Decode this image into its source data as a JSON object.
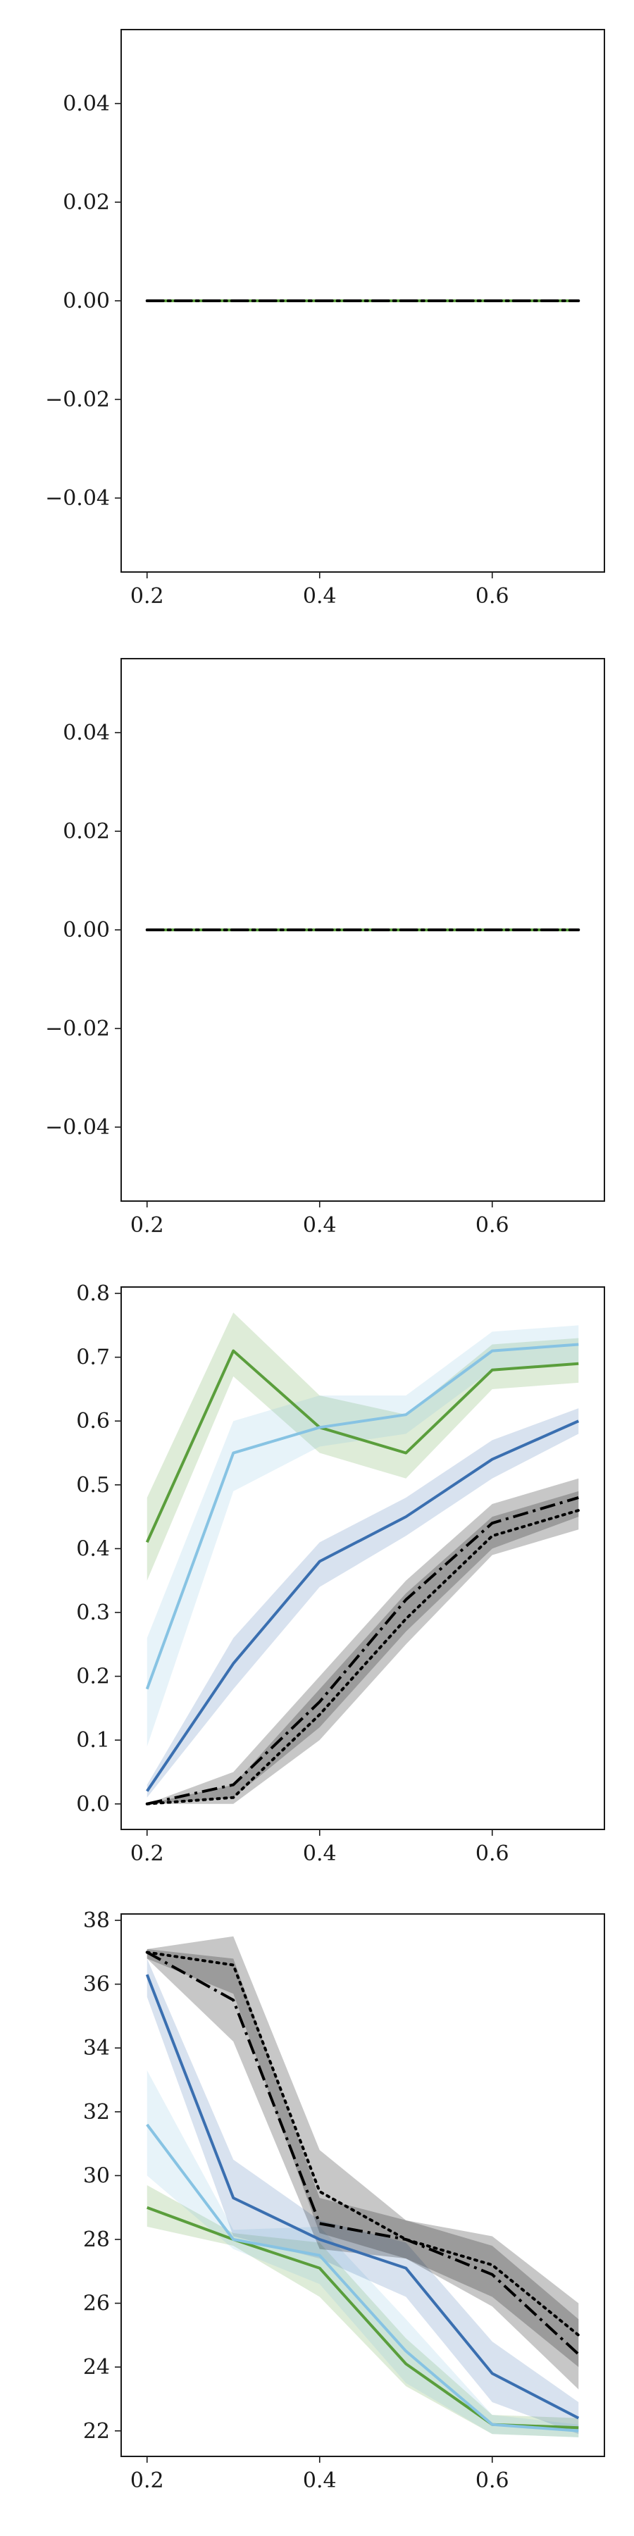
{
  "figure": {
    "name": "multi-panel-line-figure"
  },
  "chart_data": [
    {
      "type": "line",
      "x": [
        0.2,
        0.3,
        0.4,
        0.5,
        0.6,
        0.7
      ],
      "xlim": [
        0.17,
        0.73
      ],
      "ylim": [
        -0.055,
        0.055
      ],
      "xticks": [
        0.2,
        0.4,
        0.6
      ],
      "xtick_labels": [
        "0.2",
        "0.4",
        "0.6"
      ],
      "yticks": [
        0.04,
        0.02,
        0.0,
        -0.02,
        -0.04
      ],
      "ytick_labels": [
        "0.04",
        "0.02",
        "0.00",
        "−0.02",
        "−0.04"
      ],
      "grid": false,
      "series": [
        {
          "color": "#3a6fb0",
          "style": "solid",
          "values": [
            0,
            0,
            0,
            0,
            0,
            0
          ],
          "lower": [
            0,
            0,
            0,
            0,
            0,
            0
          ],
          "upper": [
            0,
            0,
            0,
            0,
            0,
            0
          ]
        },
        {
          "color": "#87c3e3",
          "style": "solid",
          "values": [
            0,
            0,
            0,
            0,
            0,
            0
          ],
          "lower": [
            0,
            0,
            0,
            0,
            0,
            0
          ],
          "upper": [
            0,
            0,
            0,
            0,
            0,
            0
          ]
        },
        {
          "color": "#5a9e3c",
          "style": "solid",
          "values": [
            0,
            0,
            0,
            0,
            0,
            0
          ],
          "lower": [
            0,
            0,
            0,
            0,
            0,
            0
          ],
          "upper": [
            0,
            0,
            0,
            0,
            0,
            0
          ]
        },
        {
          "color": "#000000",
          "style": "dotted",
          "values": [
            0,
            0,
            0,
            0,
            0,
            0
          ],
          "lower": [
            0,
            0,
            0,
            0,
            0,
            0
          ],
          "upper": [
            0,
            0,
            0,
            0,
            0,
            0
          ]
        },
        {
          "color": "#000000",
          "style": "dashdot",
          "values": [
            0,
            0,
            0,
            0,
            0,
            0
          ],
          "lower": [
            0,
            0,
            0,
            0,
            0,
            0
          ],
          "upper": [
            0,
            0,
            0,
            0,
            0,
            0
          ]
        }
      ]
    },
    {
      "type": "line",
      "x": [
        0.2,
        0.3,
        0.4,
        0.5,
        0.6,
        0.7
      ],
      "xlim": [
        0.17,
        0.73
      ],
      "ylim": [
        -0.055,
        0.055
      ],
      "xticks": [
        0.2,
        0.4,
        0.6
      ],
      "xtick_labels": [
        "0.2",
        "0.4",
        "0.6"
      ],
      "yticks": [
        0.04,
        0.02,
        0.0,
        -0.02,
        -0.04
      ],
      "ytick_labels": [
        "0.04",
        "0.02",
        "0.00",
        "−0.02",
        "−0.04"
      ],
      "grid": false,
      "series": [
        {
          "color": "#3a6fb0",
          "style": "solid",
          "values": [
            0,
            0,
            0,
            0,
            0,
            0
          ],
          "lower": [
            0,
            0,
            0,
            0,
            0,
            0
          ],
          "upper": [
            0,
            0,
            0,
            0,
            0,
            0
          ]
        },
        {
          "color": "#87c3e3",
          "style": "solid",
          "values": [
            0,
            0,
            0,
            0,
            0,
            0
          ],
          "lower": [
            0,
            0,
            0,
            0,
            0,
            0
          ],
          "upper": [
            0,
            0,
            0,
            0,
            0,
            0
          ]
        },
        {
          "color": "#5a9e3c",
          "style": "solid",
          "values": [
            0,
            0,
            0,
            0,
            0,
            0
          ],
          "lower": [
            0,
            0,
            0,
            0,
            0,
            0
          ],
          "upper": [
            0,
            0,
            0,
            0,
            0,
            0
          ]
        },
        {
          "color": "#000000",
          "style": "dotted",
          "values": [
            0,
            0,
            0,
            0,
            0,
            0
          ],
          "lower": [
            0,
            0,
            0,
            0,
            0,
            0
          ],
          "upper": [
            0,
            0,
            0,
            0,
            0,
            0
          ]
        },
        {
          "color": "#000000",
          "style": "dashdot",
          "values": [
            0,
            0,
            0,
            0,
            0,
            0
          ],
          "lower": [
            0,
            0,
            0,
            0,
            0,
            0
          ],
          "upper": [
            0,
            0,
            0,
            0,
            0,
            0
          ]
        }
      ]
    },
    {
      "type": "line",
      "x": [
        0.2,
        0.3,
        0.4,
        0.5,
        0.6,
        0.7
      ],
      "xlim": [
        0.17,
        0.73
      ],
      "ylim": [
        -0.04,
        0.81
      ],
      "xticks": [
        0.2,
        0.4,
        0.6
      ],
      "xtick_labels": [
        "0.2",
        "0.4",
        "0.6"
      ],
      "yticks": [
        0.0,
        0.1,
        0.2,
        0.3,
        0.4,
        0.5,
        0.6,
        0.7,
        0.8
      ],
      "ytick_labels": [
        "0.0",
        "0.1",
        "0.2",
        "0.3",
        "0.4",
        "0.5",
        "0.6",
        "0.7",
        "0.8"
      ],
      "grid": false,
      "series": [
        {
          "color": "#5a9e3c",
          "style": "solid",
          "values": [
            0.41,
            0.71,
            0.59,
            0.55,
            0.68,
            0.69
          ],
          "lower": [
            0.35,
            0.67,
            0.55,
            0.51,
            0.65,
            0.66
          ],
          "upper": [
            0.48,
            0.77,
            0.64,
            0.61,
            0.72,
            0.73
          ]
        },
        {
          "color": "#87c3e3",
          "style": "solid",
          "values": [
            0.18,
            0.55,
            0.59,
            0.61,
            0.71,
            0.72
          ],
          "lower": [
            0.09,
            0.49,
            0.56,
            0.58,
            0.68,
            0.69
          ],
          "upper": [
            0.26,
            0.6,
            0.64,
            0.64,
            0.74,
            0.75
          ]
        },
        {
          "color": "#3a6fb0",
          "style": "solid",
          "values": [
            0.02,
            0.22,
            0.38,
            0.45,
            0.54,
            0.6
          ],
          "lower": [
            0.01,
            0.18,
            0.34,
            0.42,
            0.51,
            0.58
          ],
          "upper": [
            0.03,
            0.26,
            0.41,
            0.48,
            0.57,
            0.62
          ]
        },
        {
          "color": "#000000",
          "style": "dotted",
          "values": [
            0.0,
            0.01,
            0.14,
            0.29,
            0.42,
            0.46
          ],
          "lower": [
            0.0,
            0.0,
            0.1,
            0.25,
            0.39,
            0.43
          ],
          "upper": [
            0.0,
            0.03,
            0.18,
            0.33,
            0.45,
            0.49
          ]
        },
        {
          "color": "#000000",
          "style": "dashdot",
          "values": [
            0.0,
            0.03,
            0.16,
            0.32,
            0.44,
            0.48
          ],
          "lower": [
            0.0,
            0.01,
            0.12,
            0.27,
            0.4,
            0.45
          ],
          "upper": [
            0.0,
            0.05,
            0.2,
            0.35,
            0.47,
            0.51
          ]
        }
      ]
    },
    {
      "type": "line",
      "x": [
        0.2,
        0.3,
        0.4,
        0.5,
        0.6,
        0.7
      ],
      "xlim": [
        0.17,
        0.73
      ],
      "ylim": [
        21.2,
        38.2
      ],
      "xticks": [
        0.2,
        0.4,
        0.6
      ],
      "xtick_labels": [
        "0.2",
        "0.4",
        "0.6"
      ],
      "yticks": [
        22,
        24,
        26,
        28,
        30,
        32,
        34,
        36,
        38
      ],
      "ytick_labels": [
        "22",
        "24",
        "26",
        "28",
        "30",
        "32",
        "34",
        "36",
        "38"
      ],
      "grid": false,
      "series": [
        {
          "color": "#5a9e3c",
          "style": "solid",
          "values": [
            29.0,
            28.0,
            27.1,
            24.1,
            22.2,
            22.1
          ],
          "lower": [
            28.4,
            27.8,
            26.2,
            23.4,
            21.9,
            21.8
          ],
          "upper": [
            29.7,
            28.2,
            27.9,
            24.9,
            22.5,
            22.4
          ]
        },
        {
          "color": "#87c3e3",
          "style": "solid",
          "values": [
            31.6,
            28.0,
            27.5,
            24.5,
            22.2,
            22.0
          ],
          "lower": [
            30.0,
            27.7,
            26.6,
            23.5,
            21.9,
            21.8
          ],
          "upper": [
            33.3,
            28.3,
            28.4,
            25.5,
            22.5,
            22.2
          ]
        },
        {
          "color": "#3a6fb0",
          "style": "solid",
          "values": [
            36.3,
            29.3,
            28.0,
            27.1,
            23.8,
            22.4
          ],
          "lower": [
            35.6,
            28.1,
            27.4,
            26.2,
            22.9,
            21.9
          ],
          "upper": [
            36.8,
            30.5,
            28.6,
            27.9,
            24.8,
            22.9
          ]
        },
        {
          "color": "#000000",
          "style": "dotted",
          "values": [
            37.0,
            36.6,
            29.5,
            28.0,
            27.2,
            25.0
          ],
          "lower": [
            36.8,
            35.7,
            28.2,
            27.4,
            26.2,
            24.0
          ],
          "upper": [
            37.1,
            37.5,
            30.8,
            28.6,
            28.1,
            26.0
          ]
        },
        {
          "color": "#000000",
          "style": "dashdot",
          "values": [
            37.0,
            35.5,
            28.5,
            28.0,
            26.9,
            24.4
          ],
          "lower": [
            36.8,
            34.2,
            27.7,
            27.4,
            25.9,
            23.3
          ],
          "upper": [
            37.1,
            36.8,
            29.3,
            28.6,
            27.8,
            25.5
          ]
        }
      ]
    }
  ]
}
